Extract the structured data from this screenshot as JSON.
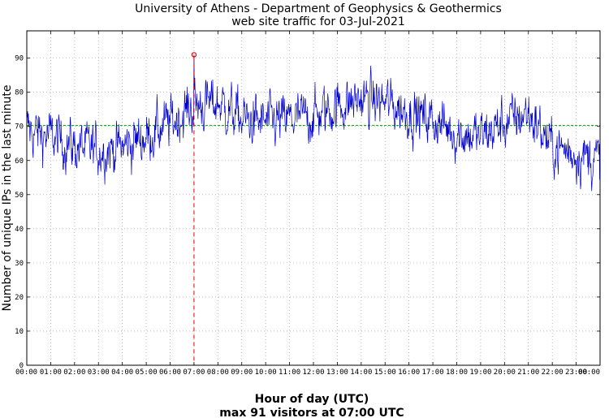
{
  "chart_data": {
    "type": "line",
    "title": "University of Athens - Department of Geophysics & Geothermics",
    "subtitle": "web site traffic for 03-Jul-2021",
    "xlabel": "Hour of day (UTC)",
    "caption": "max 91 visitors at 07:00 UTC",
    "ylabel": "Number of unique IPs in the last minute",
    "xlim": [
      0,
      24
    ],
    "ylim": [
      0,
      98
    ],
    "xticks": [
      "00:00",
      "01:00",
      "02:00",
      "03:00",
      "04:00",
      "05:00",
      "06:00",
      "07:00",
      "08:00",
      "09:00",
      "10:00",
      "11:00",
      "12:00",
      "13:00",
      "14:00",
      "15:00",
      "16:00",
      "17:00",
      "18:00",
      "19:00",
      "20:00",
      "21:00",
      "22:00",
      "23:00",
      "00:00"
    ],
    "yticks": [
      0,
      10,
      20,
      30,
      40,
      50,
      60,
      70,
      80,
      90
    ],
    "grid": true,
    "mean_line": 70.3,
    "max_point": {
      "x": 7.0,
      "y": 91
    },
    "series_hourly_mean": {
      "x": [
        0,
        1,
        2,
        3,
        4,
        5,
        6,
        7,
        8,
        9,
        10,
        11,
        12,
        13,
        14,
        15,
        16,
        17,
        18,
        19,
        20,
        21,
        22,
        23,
        24
      ],
      "y": [
        69,
        67,
        64,
        63,
        64,
        67,
        71,
        76,
        77,
        72,
        71,
        72,
        73,
        76,
        78,
        77,
        74,
        72,
        68,
        67,
        71,
        74,
        64,
        62,
        60
      ]
    },
    "colors": {
      "series": "#0000cc",
      "mean_line": "#00bb00",
      "max_marker": "#dd0000",
      "grid": "#999999"
    }
  }
}
